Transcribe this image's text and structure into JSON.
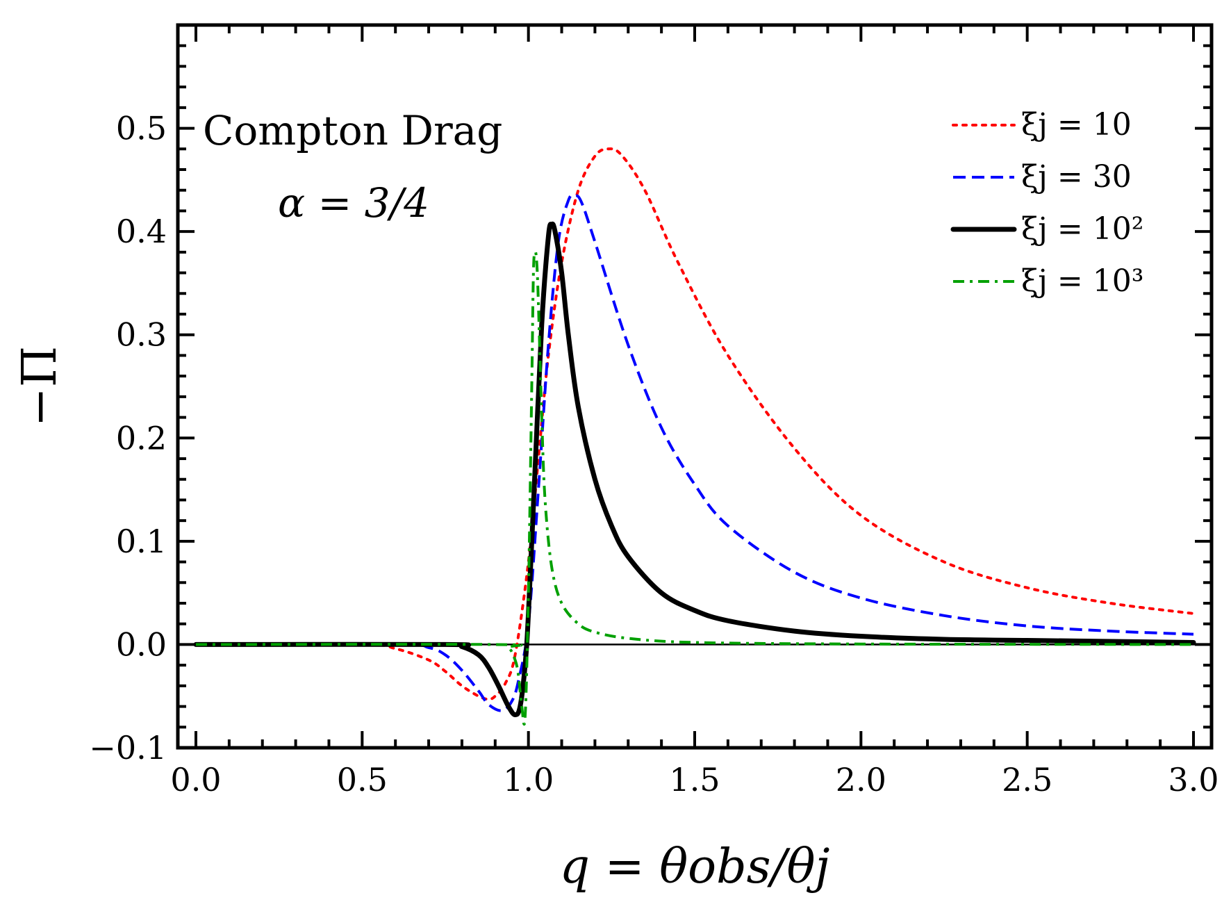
{
  "chart_data": {
    "type": "line",
    "title": "",
    "xlabel": "q = θobs/θj",
    "ylabel": "−Π",
    "xlim": [
      0.0,
      3.0
    ],
    "ylim": [
      -0.1,
      0.6
    ],
    "xticks": [
      "0.0",
      "0.5",
      "1.0",
      "1.5",
      "2.0",
      "2.5",
      "3.0"
    ],
    "yticks": [
      "−0.1",
      "0.0",
      "0.1",
      "0.2",
      "0.3",
      "0.4",
      "0.5"
    ],
    "xtick_values": [
      0.0,
      0.5,
      1.0,
      1.5,
      2.0,
      2.5,
      3.0
    ],
    "ytick_values": [
      -0.1,
      0.0,
      0.1,
      0.2,
      0.3,
      0.4,
      0.5
    ],
    "annotations": [
      "Compton Drag",
      "α = 3/4"
    ],
    "legend_position": "top-right",
    "series": [
      {
        "name": "ξj = 10",
        "color": "#ff0000",
        "style": "dotted",
        "x": [
          0.0,
          0.5,
          0.6,
          0.7,
          0.75,
          0.8,
          0.85,
          0.88,
          0.9,
          0.93,
          0.96,
          1.0,
          1.03,
          1.06,
          1.1,
          1.15,
          1.2,
          1.24,
          1.28,
          1.35,
          1.45,
          1.6,
          1.8,
          2.0,
          2.25,
          2.5,
          2.75,
          3.0
        ],
        "y": [
          0.0,
          0.0,
          -0.004,
          -0.015,
          -0.026,
          -0.04,
          -0.05,
          -0.053,
          -0.05,
          -0.038,
          -0.01,
          0.08,
          0.18,
          0.28,
          0.37,
          0.44,
          0.473,
          0.48,
          0.474,
          0.44,
          0.37,
          0.28,
          0.19,
          0.125,
          0.08,
          0.055,
          0.04,
          0.03
        ]
      },
      {
        "name": "ξj = 30",
        "color": "#0000ff",
        "style": "dashed",
        "x": [
          0.0,
          0.6,
          0.7,
          0.75,
          0.8,
          0.85,
          0.88,
          0.92,
          0.95,
          0.97,
          1.0,
          1.03,
          1.06,
          1.09,
          1.12,
          1.14,
          1.16,
          1.2,
          1.3,
          1.4,
          1.5,
          1.6,
          1.8,
          2.0,
          2.25,
          2.5,
          2.75,
          3.0
        ],
        "y": [
          0.0,
          0.0,
          -0.003,
          -0.01,
          -0.025,
          -0.045,
          -0.058,
          -0.064,
          -0.055,
          -0.035,
          0.02,
          0.15,
          0.29,
          0.39,
          0.43,
          0.435,
          0.428,
          0.39,
          0.29,
          0.21,
          0.155,
          0.115,
          0.07,
          0.045,
          0.028,
          0.018,
          0.013,
          0.01
        ]
      },
      {
        "name": "ξj = 10²",
        "color": "#000000",
        "style": "solid",
        "x": [
          0.0,
          0.75,
          0.8,
          0.85,
          0.88,
          0.91,
          0.94,
          0.96,
          0.975,
          0.99,
          1.0,
          1.02,
          1.04,
          1.06,
          1.07,
          1.08,
          1.1,
          1.12,
          1.15,
          1.2,
          1.25,
          1.3,
          1.4,
          1.5,
          1.6,
          1.8,
          2.0,
          2.25,
          2.5,
          3.0
        ],
        "y": [
          0.0,
          0.0,
          -0.002,
          -0.01,
          -0.022,
          -0.04,
          -0.06,
          -0.068,
          -0.06,
          -0.02,
          0.03,
          0.17,
          0.31,
          0.395,
          0.407,
          0.4,
          0.36,
          0.3,
          0.23,
          0.16,
          0.115,
          0.085,
          0.05,
          0.033,
          0.023,
          0.013,
          0.008,
          0.005,
          0.004,
          0.002
        ]
      },
      {
        "name": "ξj = 10³",
        "color": "#00a000",
        "style": "dashdot",
        "x": [
          0.0,
          0.9,
          0.94,
          0.96,
          0.97,
          0.98,
          0.99,
          1.0,
          1.01,
          1.015,
          1.02,
          1.025,
          1.03,
          1.04,
          1.05,
          1.07,
          1.1,
          1.15,
          1.2,
          1.3,
          1.5,
          2.0,
          3.0
        ],
        "y": [
          0.0,
          0.0,
          -0.003,
          -0.015,
          -0.03,
          -0.06,
          -0.07,
          0.05,
          0.25,
          0.36,
          0.38,
          0.37,
          0.33,
          0.22,
          0.14,
          0.075,
          0.04,
          0.02,
          0.012,
          0.006,
          0.002,
          0.0005,
          0.0
        ]
      }
    ]
  }
}
